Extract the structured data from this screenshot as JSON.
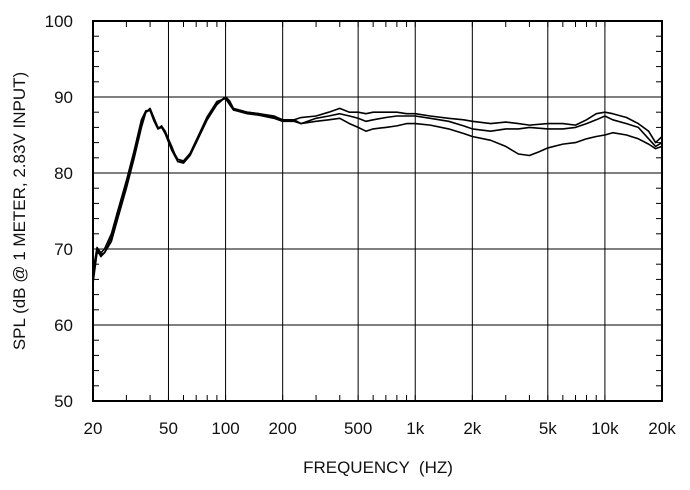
{
  "chart_data": {
    "type": "line",
    "x_scale": "log",
    "grid": true,
    "xlabel": "FREQUENCY  (HZ)",
    "ylabel": "SPL (dB @ 1 METER, 2.83V INPUT)",
    "xlim": [
      20,
      20000
    ],
    "ylim": [
      50,
      100
    ],
    "x_ticks": [
      {
        "value": 20,
        "label": "20"
      },
      {
        "value": 50,
        "label": "50"
      },
      {
        "value": 100,
        "label": "100"
      },
      {
        "value": 200,
        "label": "200"
      },
      {
        "value": 500,
        "label": "500"
      },
      {
        "value": 1000,
        "label": "1k"
      },
      {
        "value": 2000,
        "label": "2k"
      },
      {
        "value": 5000,
        "label": "5k"
      },
      {
        "value": 10000,
        "label": "10k"
      },
      {
        "value": 20000,
        "label": "20k"
      }
    ],
    "y_ticks": [
      {
        "value": 50,
        "label": "50"
      },
      {
        "value": 60,
        "label": "60"
      },
      {
        "value": 70,
        "label": "70"
      },
      {
        "value": 80,
        "label": "80"
      },
      {
        "value": 90,
        "label": "90"
      },
      {
        "value": 100,
        "label": "100"
      }
    ],
    "line_color": "#000000",
    "series": [
      {
        "values": [
          [
            20,
            66.5
          ],
          [
            21,
            70
          ],
          [
            22,
            69
          ],
          [
            23,
            69.5
          ],
          [
            25,
            71.5
          ],
          [
            27,
            74.5
          ],
          [
            30,
            78.5
          ],
          [
            33,
            82.5
          ],
          [
            36,
            86.5
          ],
          [
            38,
            88
          ],
          [
            40,
            88.3
          ],
          [
            42,
            87
          ],
          [
            44,
            85.8
          ],
          [
            46,
            86
          ],
          [
            48,
            85.2
          ],
          [
            52,
            83
          ],
          [
            56,
            81.5
          ],
          [
            60,
            81.5
          ],
          [
            65,
            82.5
          ],
          [
            70,
            84
          ],
          [
            80,
            87
          ],
          [
            90,
            89
          ],
          [
            100,
            90
          ],
          [
            105,
            89.5
          ],
          [
            110,
            88.5
          ],
          [
            130,
            88
          ],
          [
            150,
            87.8
          ],
          [
            180,
            87.5
          ],
          [
            200,
            87
          ],
          [
            230,
            87
          ],
          [
            250,
            87.3
          ],
          [
            300,
            87.5
          ],
          [
            350,
            88
          ],
          [
            400,
            88.5
          ],
          [
            450,
            88
          ],
          [
            500,
            88
          ],
          [
            550,
            87.8
          ],
          [
            600,
            88
          ],
          [
            700,
            88
          ],
          [
            800,
            88
          ],
          [
            900,
            87.8
          ],
          [
            1000,
            87.8
          ],
          [
            1200,
            87.5
          ],
          [
            1500,
            87.2
          ],
          [
            1800,
            87
          ],
          [
            2000,
            86.8
          ],
          [
            2500,
            86.5
          ],
          [
            3000,
            86.7
          ],
          [
            3500,
            86.5
          ],
          [
            4000,
            86.3
          ],
          [
            5000,
            86.5
          ],
          [
            6000,
            86.5
          ],
          [
            7000,
            86.3
          ],
          [
            8000,
            87
          ],
          [
            9000,
            87.8
          ],
          [
            10000,
            88
          ],
          [
            11000,
            87.8
          ],
          [
            13000,
            87.3
          ],
          [
            15000,
            86.5
          ],
          [
            17000,
            85.5
          ],
          [
            18500,
            84
          ],
          [
            20000,
            84.8
          ]
        ]
      },
      {
        "values": [
          [
            20,
            65.5
          ],
          [
            21,
            69.5
          ],
          [
            22,
            69.3
          ],
          [
            23,
            69.5
          ],
          [
            25,
            71
          ],
          [
            27,
            74
          ],
          [
            30,
            78
          ],
          [
            33,
            82
          ],
          [
            36,
            86
          ],
          [
            38,
            88
          ],
          [
            40,
            88.5
          ],
          [
            42,
            87.2
          ],
          [
            44,
            86
          ],
          [
            46,
            86
          ],
          [
            48,
            85.5
          ],
          [
            52,
            83.5
          ],
          [
            56,
            81.5
          ],
          [
            60,
            81.3
          ],
          [
            65,
            82.3
          ],
          [
            70,
            84
          ],
          [
            80,
            87.2
          ],
          [
            90,
            89.2
          ],
          [
            100,
            90
          ],
          [
            105,
            89.3
          ],
          [
            110,
            88.3
          ],
          [
            130,
            88
          ],
          [
            150,
            87.8
          ],
          [
            180,
            87.3
          ],
          [
            200,
            87
          ],
          [
            230,
            87
          ],
          [
            250,
            86.5
          ],
          [
            300,
            87.2
          ],
          [
            350,
            87.5
          ],
          [
            400,
            87.8
          ],
          [
            450,
            87.5
          ],
          [
            500,
            87.2
          ],
          [
            550,
            86.8
          ],
          [
            600,
            87
          ],
          [
            700,
            87.3
          ],
          [
            800,
            87.5
          ],
          [
            900,
            87.5
          ],
          [
            1000,
            87.5
          ],
          [
            1200,
            87.2
          ],
          [
            1500,
            86.8
          ],
          [
            1800,
            86.2
          ],
          [
            2000,
            85.8
          ],
          [
            2500,
            85.5
          ],
          [
            3000,
            85.8
          ],
          [
            3500,
            85.8
          ],
          [
            4000,
            86
          ],
          [
            5000,
            85.8
          ],
          [
            6000,
            85.8
          ],
          [
            7000,
            86
          ],
          [
            8000,
            86.5
          ],
          [
            9000,
            87
          ],
          [
            10000,
            87.5
          ],
          [
            11000,
            87
          ],
          [
            13000,
            86.5
          ],
          [
            15000,
            86
          ],
          [
            17000,
            84.5
          ],
          [
            18500,
            83.5
          ],
          [
            20000,
            84
          ]
        ]
      },
      {
        "values": [
          [
            20,
            67
          ],
          [
            21,
            70.2
          ],
          [
            22,
            69.5
          ],
          [
            23,
            70
          ],
          [
            25,
            72
          ],
          [
            27,
            75
          ],
          [
            30,
            79
          ],
          [
            33,
            83
          ],
          [
            36,
            87
          ],
          [
            38,
            88.2
          ],
          [
            40,
            88.2
          ],
          [
            42,
            86.8
          ],
          [
            44,
            85.8
          ],
          [
            46,
            86.2
          ],
          [
            48,
            85.5
          ],
          [
            52,
            83.2
          ],
          [
            56,
            81.8
          ],
          [
            60,
            81.6
          ],
          [
            65,
            82.6
          ],
          [
            70,
            84.3
          ],
          [
            80,
            87.4
          ],
          [
            90,
            89.4
          ],
          [
            100,
            89.8
          ],
          [
            105,
            89
          ],
          [
            110,
            88.3
          ],
          [
            130,
            87.8
          ],
          [
            150,
            87.6
          ],
          [
            180,
            87.2
          ],
          [
            200,
            86.8
          ],
          [
            230,
            86.8
          ],
          [
            250,
            86.5
          ],
          [
            300,
            86.8
          ],
          [
            350,
            87
          ],
          [
            400,
            87.2
          ],
          [
            450,
            86.5
          ],
          [
            500,
            86
          ],
          [
            550,
            85.5
          ],
          [
            600,
            85.8
          ],
          [
            700,
            86
          ],
          [
            800,
            86.2
          ],
          [
            900,
            86.5
          ],
          [
            1000,
            86.5
          ],
          [
            1200,
            86.3
          ],
          [
            1500,
            85.8
          ],
          [
            1800,
            85.2
          ],
          [
            2000,
            84.8
          ],
          [
            2500,
            84.3
          ],
          [
            3000,
            83.5
          ],
          [
            3500,
            82.5
          ],
          [
            4000,
            82.3
          ],
          [
            4500,
            82.8
          ],
          [
            5000,
            83.3
          ],
          [
            6000,
            83.8
          ],
          [
            7000,
            84
          ],
          [
            8000,
            84.5
          ],
          [
            9000,
            84.8
          ],
          [
            10000,
            85
          ],
          [
            11000,
            85.3
          ],
          [
            13000,
            85
          ],
          [
            15000,
            84.5
          ],
          [
            17000,
            83.8
          ],
          [
            18500,
            83.2
          ],
          [
            20000,
            83.5
          ]
        ]
      }
    ]
  }
}
